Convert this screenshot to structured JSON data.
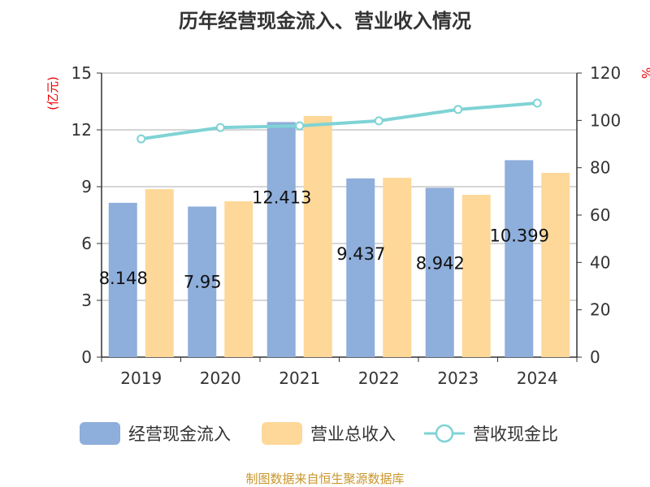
{
  "chart_data": {
    "type": "bar",
    "title": "历年经营现金流入、营业收入情况",
    "categories": [
      "2019",
      "2020",
      "2021",
      "2022",
      "2023",
      "2024"
    ],
    "y_left": {
      "label": "(亿元)",
      "range": [
        0,
        15
      ],
      "ticks": [
        0,
        3,
        6,
        9,
        12,
        15
      ]
    },
    "y_right": {
      "label": "%",
      "range": [
        0,
        120
      ],
      "ticks": [
        0,
        20,
        40,
        60,
        80,
        100,
        120
      ]
    },
    "grid": true,
    "legend_position": "bottom",
    "series": [
      {
        "name": "经营现金流入",
        "type": "bar",
        "axis": "left",
        "color": "#8eaedb",
        "values": [
          8.148,
          7.95,
          12.413,
          9.437,
          8.942,
          10.399
        ],
        "labels": [
          "8.148",
          "7.95",
          "12.413",
          "9.437",
          "8.942",
          "10.399"
        ]
      },
      {
        "name": "营业总收入",
        "type": "bar",
        "axis": "left",
        "color": "#fed899",
        "values": [
          8.87,
          8.23,
          12.73,
          9.47,
          8.57,
          9.73
        ]
      },
      {
        "name": "营收现金比",
        "type": "line",
        "axis": "right",
        "color": "#7fd3d5",
        "values": [
          92.2,
          97.0,
          97.7,
          99.8,
          104.6,
          107.3
        ]
      }
    ]
  },
  "source": "制图数据来自恒生聚源数据库"
}
